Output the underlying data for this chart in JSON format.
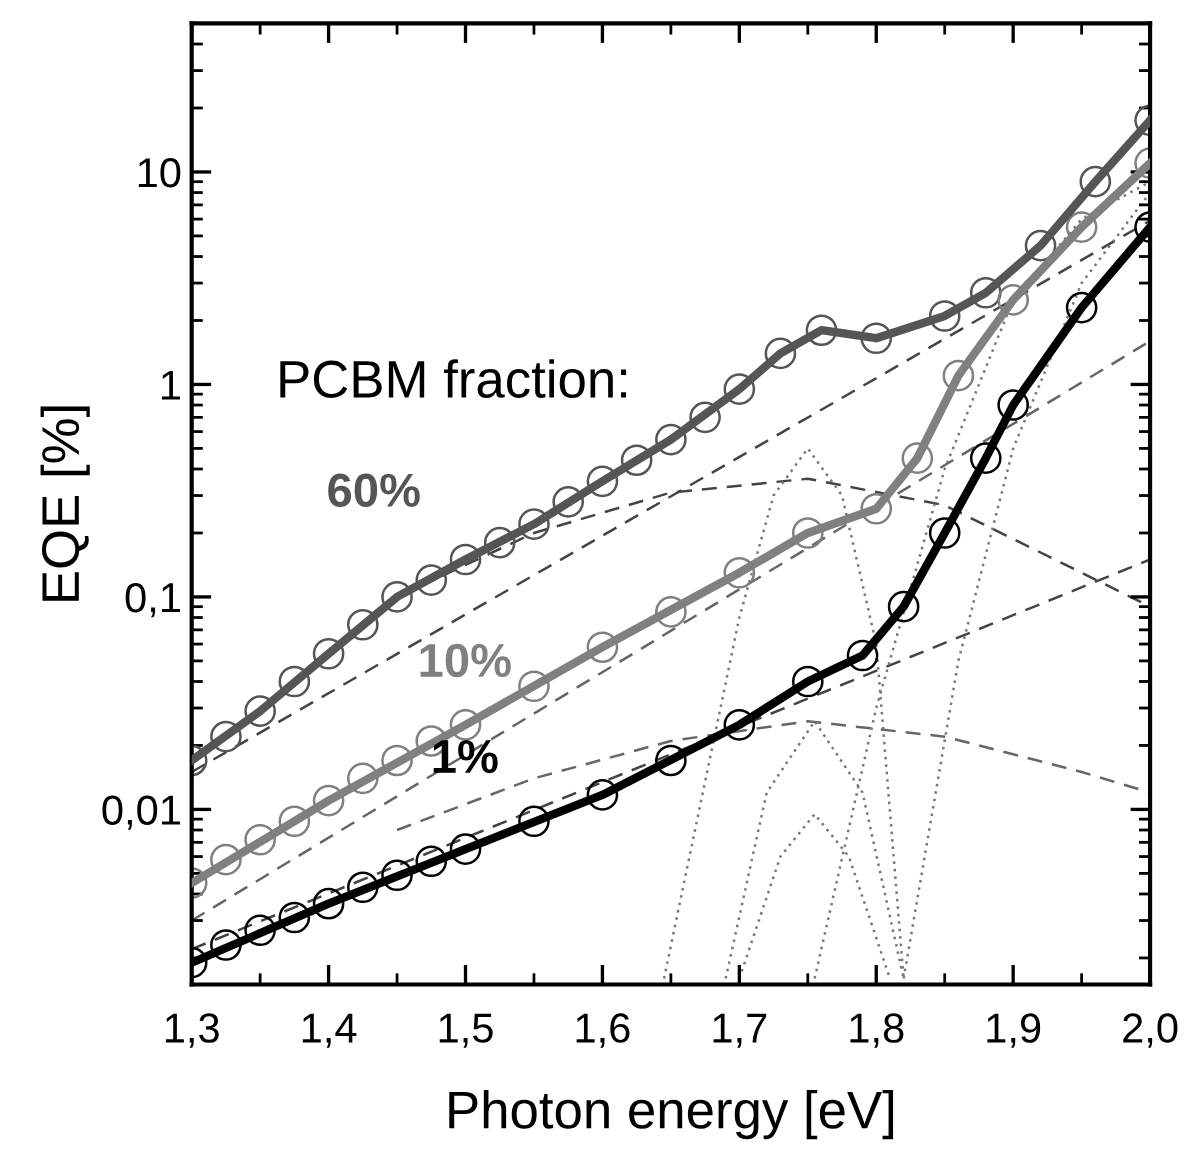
{
  "chart_data": {
    "type": "line",
    "xlabel": "Photon energy [eV]",
    "ylabel": "EQE [%]",
    "log": "y",
    "grid": false,
    "xlim": [
      1.3,
      2.0
    ],
    "ylim": [
      0.0015,
      50
    ],
    "xticks": [
      {
        "value": 1.3,
        "label": "1,3"
      },
      {
        "value": 1.4,
        "label": "1,4"
      },
      {
        "value": 1.5,
        "label": "1,5"
      },
      {
        "value": 1.6,
        "label": "1,6"
      },
      {
        "value": 1.7,
        "label": "1,7"
      },
      {
        "value": 1.8,
        "label": "1,8"
      },
      {
        "value": 1.9,
        "label": "1,9"
      },
      {
        "value": 2.0,
        "label": "2,0"
      }
    ],
    "yticks": [
      {
        "value": 0.01,
        "label": "0,01"
      },
      {
        "value": 0.1,
        "label": "0,1"
      },
      1,
      10
    ],
    "annotations": [
      "PCBM fraction:",
      "60%",
      "10%",
      "1%"
    ],
    "series": [
      {
        "type": "scatter",
        "marker": "circle",
        "color": "#555555",
        "x": [
          1.3,
          1.325,
          1.35,
          1.375,
          1.4,
          1.425,
          1.45,
          1.475,
          1.5,
          1.525,
          1.55,
          1.575,
          1.6,
          1.625,
          1.65,
          1.675,
          1.7,
          1.73,
          1.76,
          1.8,
          1.85,
          1.88,
          1.92,
          1.96,
          2.0
        ],
        "values": [
          0.017,
          0.022,
          0.029,
          0.04,
          0.054,
          0.074,
          0.1,
          0.12,
          0.15,
          0.18,
          0.22,
          0.28,
          0.35,
          0.44,
          0.55,
          0.7,
          0.95,
          1.4,
          1.8,
          1.65,
          2.1,
          2.7,
          4.5,
          9,
          17.5
        ]
      },
      {
        "type": "line",
        "line_style": "solid",
        "color": "#555555",
        "x": [
          1.3,
          1.35,
          1.4,
          1.45,
          1.5,
          1.55,
          1.6,
          1.65,
          1.7,
          1.73,
          1.76,
          1.8,
          1.85,
          1.88,
          1.92,
          1.96,
          2.0
        ],
        "values": [
          0.017,
          0.029,
          0.054,
          0.1,
          0.15,
          0.22,
          0.35,
          0.55,
          0.95,
          1.4,
          1.8,
          1.65,
          2.1,
          2.7,
          4.5,
          9,
          17.5
        ]
      },
      {
        "type": "scatter",
        "marker": "circle",
        "color": "#808080",
        "x": [
          1.3,
          1.325,
          1.35,
          1.375,
          1.4,
          1.425,
          1.45,
          1.475,
          1.5,
          1.55,
          1.6,
          1.65,
          1.7,
          1.75,
          1.8,
          1.83,
          1.86,
          1.9,
          1.95,
          2.0
        ],
        "values": [
          0.0045,
          0.0058,
          0.0072,
          0.0088,
          0.011,
          0.014,
          0.017,
          0.021,
          0.025,
          0.038,
          0.058,
          0.085,
          0.13,
          0.2,
          0.26,
          0.45,
          1.1,
          2.5,
          5.5,
          11
        ]
      },
      {
        "type": "line",
        "line_style": "solid",
        "color": "#808080",
        "x": [
          1.3,
          1.4,
          1.5,
          1.6,
          1.7,
          1.75,
          1.8,
          1.83,
          1.86,
          1.9,
          1.95,
          2.0
        ],
        "values": [
          0.0045,
          0.011,
          0.025,
          0.058,
          0.13,
          0.2,
          0.26,
          0.45,
          1.1,
          2.5,
          5.5,
          11
        ]
      },
      {
        "type": "scatter",
        "marker": "circle",
        "color": "#000000",
        "x": [
          1.3,
          1.325,
          1.35,
          1.375,
          1.4,
          1.425,
          1.45,
          1.475,
          1.5,
          1.55,
          1.6,
          1.65,
          1.7,
          1.75,
          1.79,
          1.82,
          1.85,
          1.88,
          1.9,
          1.95,
          2.0
        ],
        "values": [
          0.0019,
          0.0023,
          0.0027,
          0.0031,
          0.0036,
          0.0043,
          0.0049,
          0.0057,
          0.0065,
          0.0088,
          0.0117,
          0.017,
          0.025,
          0.04,
          0.053,
          0.09,
          0.2,
          0.45,
          0.8,
          2.3,
          5.5
        ]
      },
      {
        "type": "line",
        "line_style": "solid",
        "color": "#000000",
        "x": [
          1.3,
          1.4,
          1.5,
          1.6,
          1.7,
          1.75,
          1.79,
          1.82,
          1.85,
          1.88,
          1.9,
          1.95,
          2.0
        ],
        "values": [
          0.0019,
          0.0036,
          0.0065,
          0.0117,
          0.025,
          0.04,
          0.053,
          0.09,
          0.2,
          0.45,
          0.8,
          2.3,
          5.5
        ]
      },
      {
        "type": "line",
        "line_style": "dashed",
        "color": "#444444",
        "x": [
          1.3,
          2.0
        ],
        "values": [
          0.015,
          5.9
        ]
      },
      {
        "type": "line",
        "line_style": "dashed",
        "color": "#444444",
        "x": [
          1.45,
          1.55,
          1.65,
          1.75,
          1.85,
          1.95,
          2.0
        ],
        "values": [
          0.1,
          0.2,
          0.31,
          0.36,
          0.27,
          0.13,
          0.09
        ]
      },
      {
        "type": "line",
        "line_style": "dashed",
        "color": "#666666",
        "x": [
          1.3,
          2.0
        ],
        "values": [
          0.003,
          1.6
        ]
      },
      {
        "type": "line",
        "line_style": "dashed",
        "color": "#444444",
        "x": [
          1.3,
          2.0
        ],
        "values": [
          0.0022,
          0.15
        ]
      },
      {
        "type": "line",
        "line_style": "dashed",
        "color": "#666666",
        "x": [
          1.45,
          1.55,
          1.65,
          1.75,
          1.85,
          1.95,
          2.0
        ],
        "values": [
          0.008,
          0.014,
          0.021,
          0.026,
          0.022,
          0.015,
          0.012
        ]
      },
      {
        "type": "line",
        "line_style": "dotted",
        "color": "#777777",
        "x": [
          1.645,
          1.7,
          1.725,
          1.75,
          1.775,
          1.8,
          1.82
        ],
        "values": [
          0.0016,
          0.08,
          0.3,
          0.5,
          0.3,
          0.06,
          0.0016
        ]
      },
      {
        "type": "line",
        "line_style": "dotted",
        "color": "#777777",
        "x": [
          1.69,
          1.72,
          1.755,
          1.79,
          1.82
        ],
        "values": [
          0.0016,
          0.012,
          0.026,
          0.012,
          0.0016
        ]
      },
      {
        "type": "line",
        "line_style": "dotted",
        "color": "#777777",
        "x": [
          1.7,
          1.73,
          1.755,
          1.78,
          1.81
        ],
        "values": [
          0.0016,
          0.006,
          0.0095,
          0.006,
          0.0016
        ]
      },
      {
        "type": "line",
        "line_style": "dotted",
        "color": "#777777",
        "x": [
          1.755,
          1.8,
          1.85,
          1.9,
          1.95,
          2.0
        ],
        "values": [
          0.0016,
          0.03,
          0.4,
          2.5,
          6,
          9
        ]
      },
      {
        "type": "line",
        "line_style": "dotted",
        "color": "#777777",
        "x": [
          1.82,
          1.86,
          1.9,
          1.95,
          2.0
        ],
        "values": [
          0.0016,
          0.05,
          0.5,
          3,
          8
        ]
      }
    ]
  }
}
